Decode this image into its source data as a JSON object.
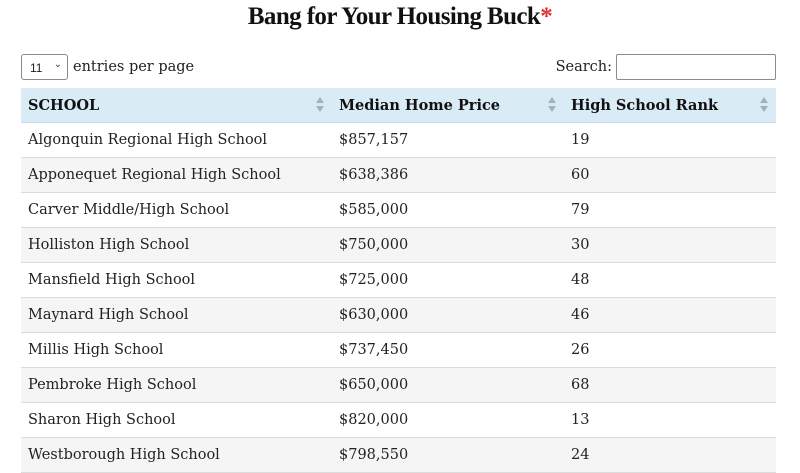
{
  "title": {
    "text": "Bang for Your Housing Buck",
    "asterisk": "*",
    "asterisk_color": "#e03030"
  },
  "controls": {
    "page_length_value": "11",
    "page_length_label": "entries per page",
    "search_label": "Search:",
    "search_value": ""
  },
  "table": {
    "header_bg": "#d9ecf6",
    "columns": [
      "SCHOOL",
      "Median Home Price",
      "High School Rank"
    ],
    "rows": [
      [
        "Algonquin Regional High School",
        "$857,157",
        "19"
      ],
      [
        "Apponequet Regional High School",
        "$638,386",
        "60"
      ],
      [
        "Carver Middle/High School",
        "$585,000",
        "79"
      ],
      [
        "Holliston High School",
        "$750,000",
        "30"
      ],
      [
        "Mansfield High School",
        "$725,000",
        "48"
      ],
      [
        "Maynard High School",
        "$630,000",
        "46"
      ],
      [
        "Millis High School",
        "$737,450",
        "26"
      ],
      [
        "Pembroke High School",
        "$650,000",
        "68"
      ],
      [
        "Sharon High School",
        "$820,000",
        "13"
      ],
      [
        "Westborough High School",
        "$798,550",
        "24"
      ]
    ]
  }
}
